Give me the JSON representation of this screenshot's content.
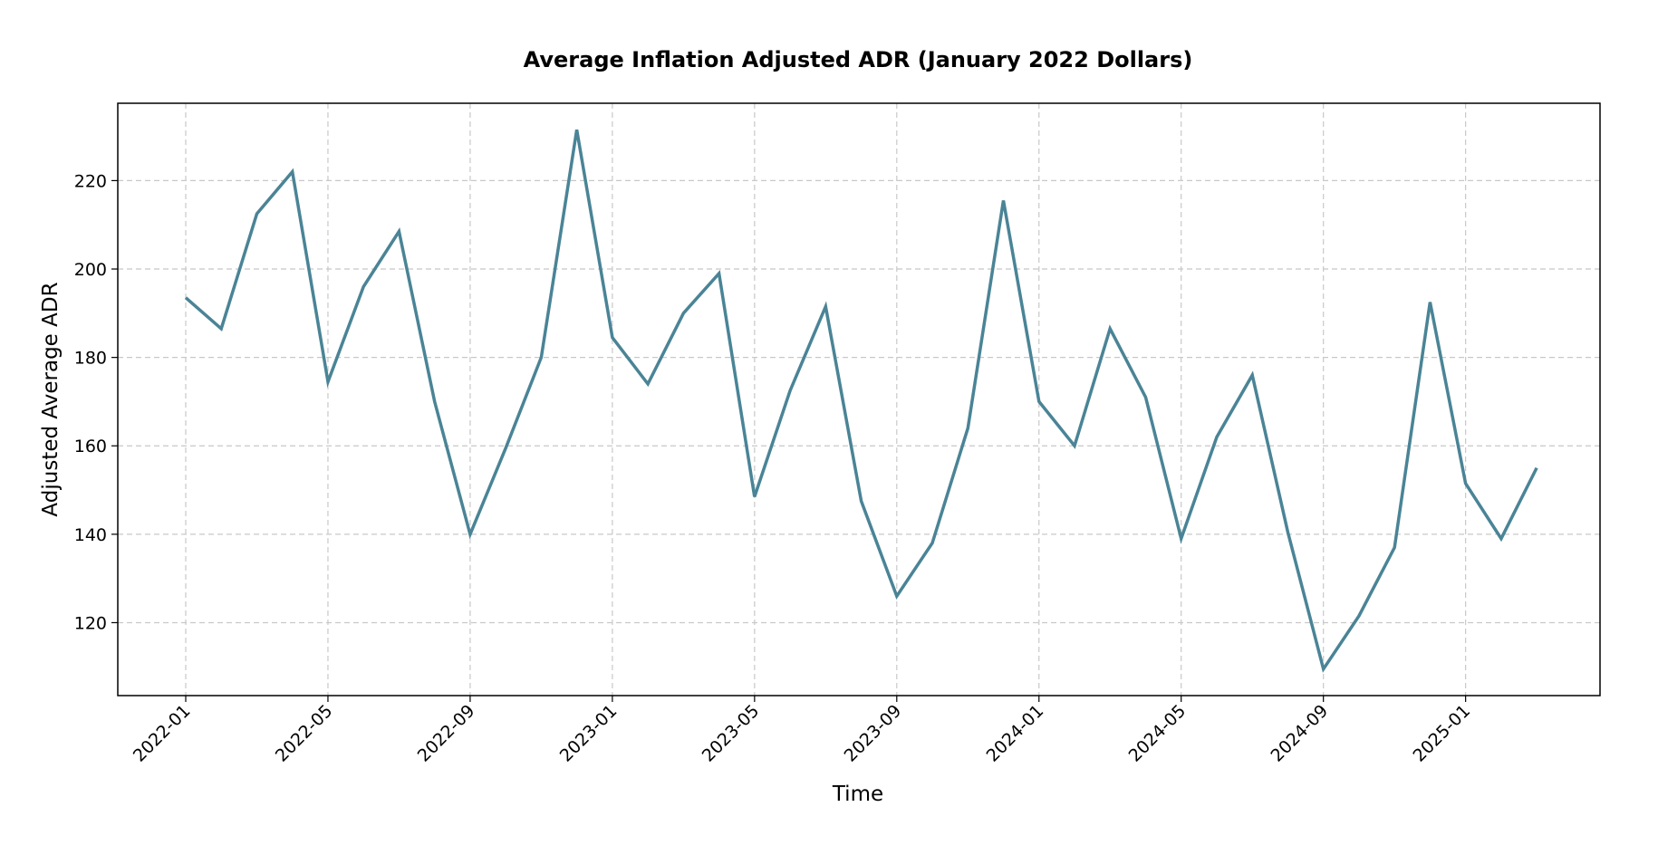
{
  "chart_data": {
    "type": "line",
    "title": "Average Inflation Adjusted ADR (January 2022 Dollars)",
    "xlabel": "Time",
    "ylabel": "Adjusted Average ADR",
    "grid": true,
    "ylim": [
      103.5,
      237.5
    ],
    "x_tick_labels": [
      "2022-01",
      "2022-05",
      "2022-09",
      "2023-01",
      "2023-05",
      "2023-09",
      "2024-01",
      "2024-05",
      "2024-09",
      "2025-01"
    ],
    "y_ticks": [
      120,
      140,
      160,
      180,
      200,
      220
    ],
    "x": [
      "2022-01",
      "2022-02",
      "2022-03",
      "2022-04",
      "2022-05",
      "2022-06",
      "2022-07",
      "2022-08",
      "2022-09",
      "2022-10",
      "2022-11",
      "2022-12",
      "2023-01",
      "2023-02",
      "2023-03",
      "2023-04",
      "2023-05",
      "2023-06",
      "2023-07",
      "2023-08",
      "2023-09",
      "2023-10",
      "2023-11",
      "2023-12",
      "2024-01",
      "2024-02",
      "2024-03",
      "2024-04",
      "2024-05",
      "2024-06",
      "2024-07",
      "2024-08",
      "2024-09",
      "2024-10",
      "2024-11",
      "2024-12",
      "2025-01",
      "2025-02",
      "2025-03"
    ],
    "series": [
      {
        "color": "#4a8496",
        "values": [
          193.5,
          186.5,
          212.5,
          222,
          174.5,
          196,
          208.5,
          170,
          140,
          159.5,
          180,
          231.5,
          184.5,
          174,
          190,
          199,
          148.5,
          172.5,
          191.5,
          147.5,
          126,
          138,
          164,
          215.5,
          170,
          160,
          186.5,
          171,
          139,
          162,
          176,
          140.5,
          109.5,
          121.5,
          137,
          192.5,
          151.5,
          139,
          155
        ]
      }
    ]
  }
}
